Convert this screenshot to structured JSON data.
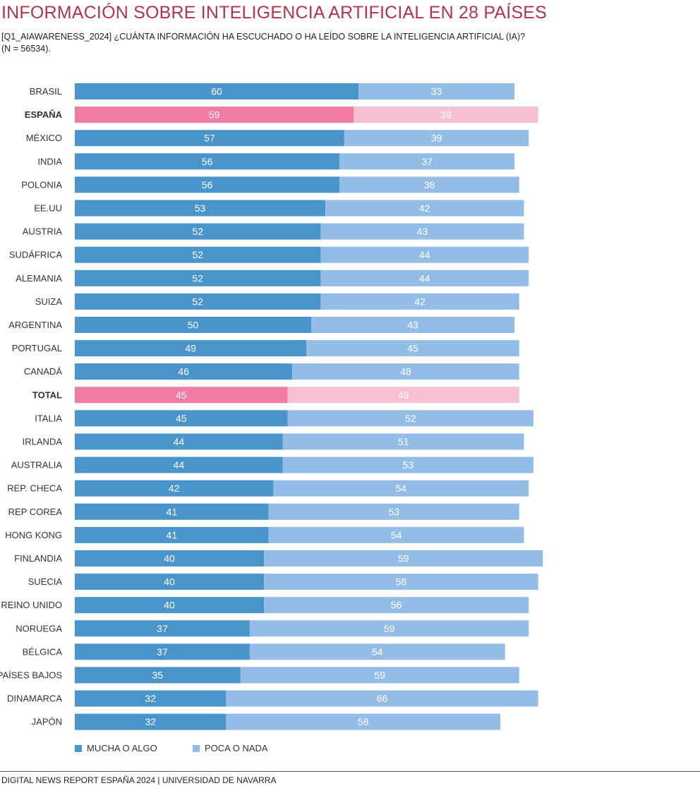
{
  "title": "INFORMACIÓN SOBRE INTELIGENCIA ARTIFICIAL EN 28 PAÍSES",
  "subtitle_line1": "[Q1_AIAWARENESS_2024] ¿CUÁNTA INFORMACIÓN HA ESCUCHADO O HA LEÍDO SOBRE LA INTELIGENCIA ARTIFICIAL (IA)?",
  "subtitle_line2": "(N = 56534).",
  "footer": "DIGITAL NEWS REPORT ESPAÑA 2024 | UNIVERSIDAD DE NAVARRA",
  "legend": [
    {
      "label": "MUCHA O ALGO",
      "color": "#4a94cc"
    },
    {
      "label": "POCA O NADA",
      "color": "#93bde6"
    }
  ],
  "colors": {
    "series1": "#4a94cc",
    "series2": "#93bde6",
    "highlight1": "#f07ca6",
    "highlight2": "#f8bfd4",
    "value_label": "#ffffff"
  },
  "chart_data": {
    "type": "bar",
    "orientation": "horizontal",
    "stacked": true,
    "categories": [
      "BRASIL",
      "ESPAÑA",
      "MÉXICO",
      "INDIA",
      "POLONIA",
      "EE.UU",
      "AUSTRIA",
      "SUDÁFRICA",
      "ALEMANIA",
      "SUIZA",
      "ARGENTINA",
      "PORTUGAL",
      "CANADÁ",
      "TOTAL",
      "ITALIA",
      "IRLANDA",
      "AUSTRALIA",
      "REP. CHECA",
      "REP COREA",
      "HONG KONG",
      "FINLANDIA",
      "SUECIA",
      "REINO UNIDO",
      "NORUEGA",
      "BÉLGICA",
      "PAÍSES BAJOS",
      "DINAMARCA",
      "JAPÓN"
    ],
    "highlighted": [
      "ESPAÑA",
      "TOTAL"
    ],
    "series": [
      {
        "name": "MUCHA O ALGO",
        "values": [
          60,
          59,
          57,
          56,
          56,
          53,
          52,
          52,
          52,
          52,
          50,
          49,
          46,
          45,
          45,
          44,
          44,
          42,
          41,
          41,
          40,
          40,
          40,
          37,
          37,
          35,
          32,
          32
        ]
      },
      {
        "name": "POCA O NADA",
        "values": [
          33,
          39,
          39,
          37,
          38,
          42,
          43,
          44,
          44,
          42,
          43,
          45,
          48,
          49,
          52,
          51,
          53,
          54,
          53,
          54,
          59,
          58,
          56,
          59,
          54,
          59,
          66,
          58
        ]
      }
    ],
    "xlim": [
      0,
      100
    ],
    "grid": false,
    "legend_position": "bottom-left"
  }
}
